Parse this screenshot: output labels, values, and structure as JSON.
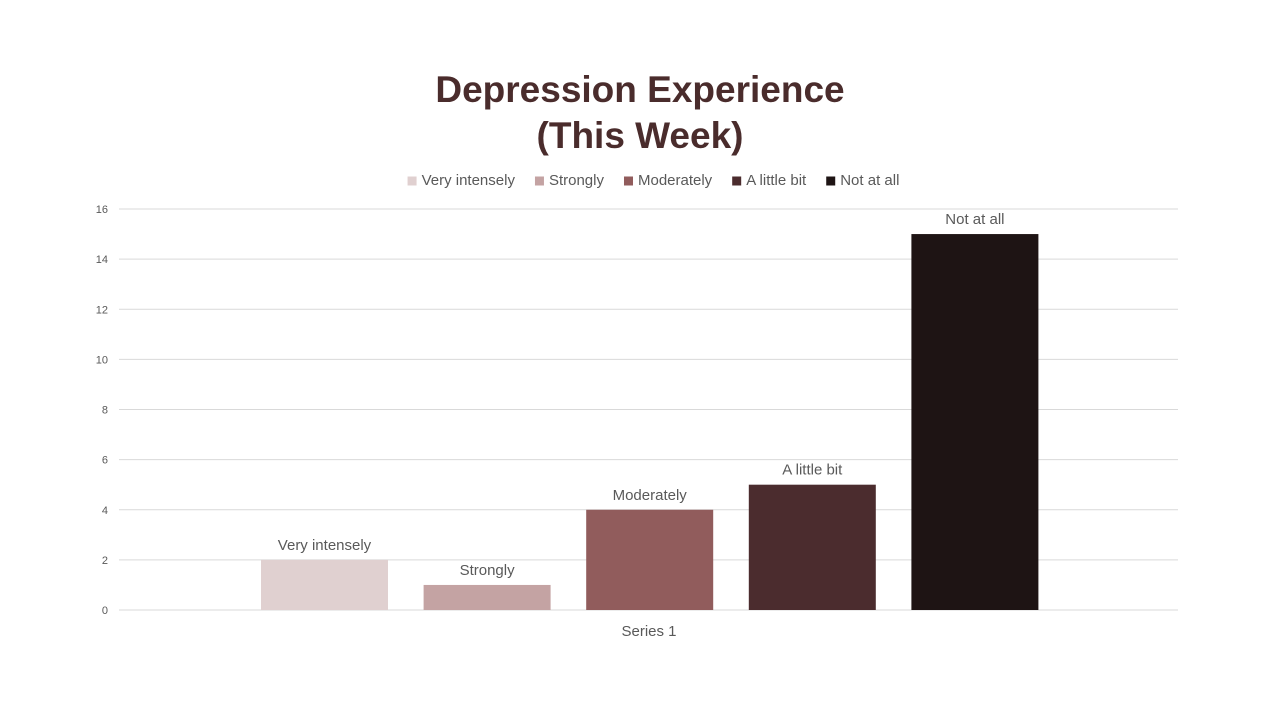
{
  "chart_data": {
    "type": "bar",
    "title_line1": "Depression Experience",
    "title_line2": "(This Week)",
    "categories": [
      "Series 1"
    ],
    "series": [
      {
        "name": "Very intensely",
        "values": [
          2
        ],
        "color": "#e0d0d0"
      },
      {
        "name": "Strongly",
        "values": [
          1
        ],
        "color": "#c4a3a3"
      },
      {
        "name": "Moderately",
        "values": [
          4
        ],
        "color": "#915c5c"
      },
      {
        "name": "A little bit",
        "values": [
          5
        ],
        "color": "#4b2c2e"
      },
      {
        "name": "Not at all",
        "values": [
          15
        ],
        "color": "#1e1414"
      }
    ],
    "ylim": [
      0,
      16
    ],
    "yticks": [
      "0",
      "2",
      "4",
      "6",
      "8",
      "10",
      "12",
      "14",
      "16"
    ],
    "grid": true,
    "legend_position": "top",
    "data_labels": "series name"
  }
}
